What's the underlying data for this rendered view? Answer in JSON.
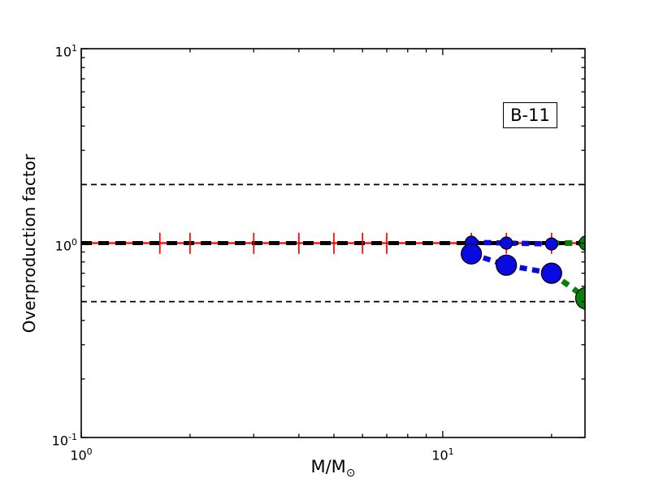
{
  "axis": {
    "xlabel": {
      "main": "M/M",
      "sub": "⊙"
    },
    "y_tick_labels": [
      {
        "base": "10",
        "exp": "1",
        "value": 10
      },
      {
        "base": "10",
        "exp": "0",
        "value": 1
      },
      {
        "base": "10",
        "exp": "-1",
        "value": 0.1
      }
    ],
    "x_tick_labels": [
      {
        "base": "10",
        "exp": "0",
        "value": 1
      },
      {
        "base": "10",
        "exp": "1",
        "value": 10
      }
    ]
  },
  "colors": {
    "reference_red": "#ff0000",
    "model_blue": "#0a0ae0",
    "model_green": "#0a800a",
    "frame_black": "#000000",
    "background": "#ffffff"
  },
  "chart_data": {
    "type": "line",
    "title": "",
    "annotation": "B-11",
    "xlabel": "M/M⊙",
    "ylabel": "Overproduction factor",
    "xscale": "log",
    "yscale": "log",
    "xlim": [
      1,
      24.75
    ],
    "ylim": [
      0.1,
      10
    ],
    "grid": false,
    "legend": "none",
    "x_major_ticks": [
      1,
      10
    ],
    "x_minor_ticks": [
      2,
      3,
      4,
      5,
      6,
      7,
      8,
      9,
      20
    ],
    "y_major_ticks": [
      0.1,
      1,
      10
    ],
    "y_minor_ticks": [
      0.2,
      0.3,
      0.4,
      0.5,
      0.6,
      0.7,
      0.8,
      0.9,
      2,
      3,
      4,
      5,
      6,
      7,
      8,
      9
    ],
    "masses": [
      1.65,
      2,
      3,
      4,
      5,
      6,
      7,
      12,
      15,
      20,
      25
    ],
    "reference_lines": [
      {
        "name": "factor-two-upper",
        "y": 2,
        "color": "#000000",
        "width": 1.7,
        "dash": [
          7,
          5
        ]
      },
      {
        "name": "factor-two-lower",
        "y": 0.5,
        "color": "#000000",
        "width": 1.7,
        "dash": [
          7,
          5
        ]
      },
      {
        "name": "unity-thick-dashed",
        "y": 1,
        "color": "#000000",
        "width": 5,
        "dash": [
          13,
          8
        ]
      }
    ],
    "error_bars": {
      "x": [
        1.65,
        2,
        3,
        4,
        5,
        6,
        7,
        12,
        15,
        20,
        25
      ],
      "y": 1,
      "factor_lo": 0.88,
      "factor_hi": 1.13,
      "color": "#ff0000",
      "width": 1.7
    },
    "series": [
      {
        "name": "solar-reference-red-solid",
        "color": "#ff0000",
        "width": 2.2,
        "dash": null,
        "x": [
          1,
          24.75
        ],
        "y": [
          1,
          1
        ],
        "marker": null
      },
      {
        "name": "green-model-flat",
        "color": "#0a800a",
        "width": 7,
        "dash": [
          9,
          7.5
        ],
        "x": [
          20,
          25
        ],
        "y": [
          1.0,
          1.0
        ],
        "marker": {
          "radius": 9,
          "at": [
            1
          ],
          "edge": "#000000",
          "edge_width": 1.2
        }
      },
      {
        "name": "blue-model-flat",
        "color": "#0a0ae0",
        "width": 6.5,
        "dash": [
          9,
          6.5
        ],
        "x": [
          12,
          15,
          20
        ],
        "y": [
          1.01,
          1.0,
          0.99
        ],
        "marker": {
          "radius": 7.5,
          "at": [
            0,
            1,
            2
          ],
          "edge": "#000000",
          "edge_width": 1.2
        }
      },
      {
        "name": "green-model-declining",
        "color": "#0a800a",
        "width": 7,
        "dash": [
          9,
          7.5
        ],
        "x": [
          20,
          25
        ],
        "y": [
          0.7,
          0.52
        ],
        "marker": {
          "radius": 13.5,
          "at": [
            1
          ],
          "edge": "#000000",
          "edge_width": 1.2
        }
      },
      {
        "name": "blue-model-declining",
        "color": "#0a0ae0",
        "width": 6.5,
        "dash": [
          9,
          6.5
        ],
        "x": [
          12,
          15,
          20
        ],
        "y": [
          0.88,
          0.77,
          0.7
        ],
        "marker": {
          "radius": 12.5,
          "at": [
            0,
            1,
            2
          ],
          "edge": "#000000",
          "edge_width": 1.2
        }
      }
    ]
  }
}
